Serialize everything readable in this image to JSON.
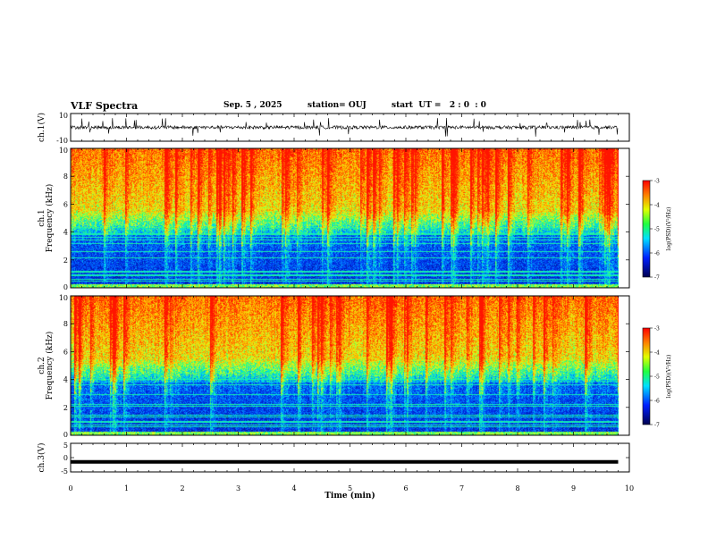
{
  "header": {
    "title": "VLF Spectra",
    "date": "Sep. 5 , 2025",
    "station": "station= OUJ",
    "start": "start  UT =   2 : 0  : 0"
  },
  "colors": {
    "spectrogram": [
      "#0010a0",
      "#0040ff",
      "#00c8ff",
      "#20ff80",
      "#e0ff20",
      "#ffb000",
      "#ff2000"
    ]
  },
  "chart_data": [
    {
      "type": "line",
      "panel": "ch1-waveform",
      "ylabel": "ch.1(V)",
      "ylim": [
        -10,
        10
      ],
      "yticks": [
        "10",
        "-10"
      ],
      "series": [
        {
          "values_summary": "noise around 0 V with frequent spikes up to about ±6 V"
        }
      ]
    },
    {
      "type": "heatmap",
      "panel": "ch1-spectrogram",
      "ylabel": "ch.1\nFrequency (kHz)",
      "ylim": [
        0,
        10
      ],
      "yticks": [
        "0",
        "2",
        "4",
        "6",
        "8",
        "10"
      ],
      "xlim_min": [
        0,
        9.8
      ],
      "colorbar": {
        "label": "log(PSD)(V²/Hz)",
        "range": [
          -7,
          -3
        ],
        "ticks": [
          "-3",
          "-4",
          "-5",
          "-6",
          "-7"
        ]
      }
    },
    {
      "type": "heatmap",
      "panel": "ch2-spectrogram",
      "ylabel": "ch.2\nFrequency (kHz)",
      "ylim": [
        0,
        10
      ],
      "yticks": [
        "0",
        "2",
        "4",
        "6",
        "8",
        "10"
      ],
      "xlim_min": [
        0,
        9.8
      ],
      "colorbar": {
        "label": "log(PSD)(V²/Hz)",
        "range": [
          -7,
          -3
        ],
        "ticks": [
          "-3",
          "-4",
          "-5",
          "-6",
          "-7"
        ]
      }
    },
    {
      "type": "line",
      "panel": "ch3-waveform",
      "ylabel": "ch.3(V)",
      "ylim": [
        -5,
        5
      ],
      "yticks": [
        "5",
        "0",
        "-5"
      ],
      "series": [
        {
          "constant_value": -1.5
        }
      ]
    }
  ],
  "xaxis": {
    "label": "Time (min)",
    "range": [
      0,
      10
    ],
    "ticks": [
      "0",
      "1",
      "2",
      "3",
      "4",
      "5",
      "6",
      "7",
      "8",
      "9",
      "10"
    ]
  }
}
